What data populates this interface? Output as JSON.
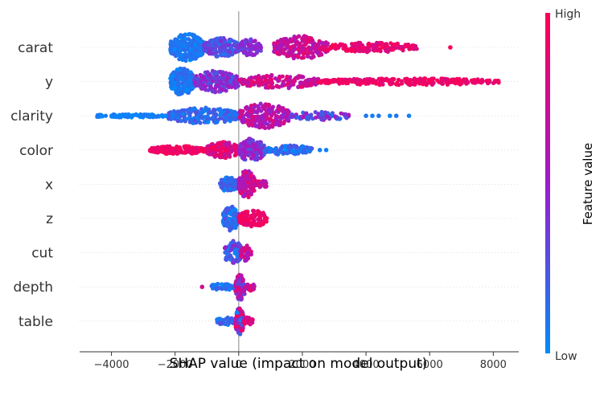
{
  "chart_data": {
    "type": "scatter",
    "subtype": "shap-beeswarm-summary",
    "title": "",
    "xlabel": "SHAP value (impact on model output)",
    "ylabel": "",
    "xlim": [
      -5000,
      8800
    ],
    "xticks": [
      -4000,
      -2000,
      0,
      2000,
      4000,
      6000,
      8000
    ],
    "xtick_labels": [
      "−4000",
      "−2000",
      "0",
      "2000",
      "4000",
      "6000",
      "8000"
    ],
    "grid": false,
    "features": [
      {
        "name": "carat",
        "clusters": [
          {
            "from": -2150,
            "to": -1100,
            "lo": 0.0,
            "hi": 0.18,
            "amp": 1.0,
            "n": 260
          },
          {
            "from": -1100,
            "to": 0,
            "lo": 0.1,
            "hi": 0.45,
            "amp": 0.7,
            "n": 180
          },
          {
            "from": 0,
            "to": 700,
            "lo": 0.3,
            "hi": 0.55,
            "amp": 0.6,
            "n": 80
          },
          {
            "from": 1100,
            "to": 2800,
            "lo": 0.5,
            "hi": 0.9,
            "amp": 0.85,
            "n": 220
          },
          {
            "from": 2800,
            "to": 5600,
            "lo": 0.75,
            "hi": 1.0,
            "amp": 0.35,
            "n": 150
          }
        ],
        "outliers": [
          {
            "x": 6650,
            "c": 1.0
          }
        ]
      },
      {
        "name": "y",
        "clusters": [
          {
            "from": -2150,
            "to": -1400,
            "lo": 0.0,
            "hi": 0.2,
            "amp": 1.0,
            "n": 220
          },
          {
            "from": -1400,
            "to": 0,
            "lo": 0.2,
            "hi": 0.6,
            "amp": 0.8,
            "n": 200
          },
          {
            "from": 0,
            "to": 2500,
            "lo": 0.55,
            "hi": 0.9,
            "amp": 0.5,
            "n": 180
          },
          {
            "from": 2500,
            "to": 8200,
            "lo": 0.8,
            "hi": 1.0,
            "amp": 0.25,
            "n": 260
          }
        ],
        "outliers": []
      },
      {
        "name": "clarity",
        "clusters": [
          {
            "from": -4450,
            "to": -2200,
            "lo": 0.0,
            "hi": 0.1,
            "amp": 0.12,
            "n": 90
          },
          {
            "from": -2200,
            "to": 0,
            "lo": 0.0,
            "hi": 0.3,
            "amp": 0.6,
            "n": 220
          },
          {
            "from": 0,
            "to": 1600,
            "lo": 0.45,
            "hi": 0.85,
            "amp": 0.9,
            "n": 200
          },
          {
            "from": 1600,
            "to": 3600,
            "lo": 0.1,
            "hi": 0.6,
            "amp": 0.3,
            "n": 80
          }
        ],
        "outliers": [
          {
            "x": 4000,
            "c": 0.1
          },
          {
            "x": 4200,
            "c": 0.05
          },
          {
            "x": 4400,
            "c": 0.1
          },
          {
            "x": 4750,
            "c": 0.05
          },
          {
            "x": 4950,
            "c": 0.1
          },
          {
            "x": 5350,
            "c": 0.05
          }
        ]
      },
      {
        "name": "color",
        "clusters": [
          {
            "from": -2800,
            "to": -1000,
            "lo": 0.85,
            "hi": 1.0,
            "amp": 0.3,
            "n": 150
          },
          {
            "from": -1000,
            "to": 0,
            "lo": 0.6,
            "hi": 1.0,
            "amp": 0.6,
            "n": 150
          },
          {
            "from": 0,
            "to": 800,
            "lo": 0.2,
            "hi": 0.6,
            "amp": 0.85,
            "n": 140
          },
          {
            "from": 800,
            "to": 2300,
            "lo": 0.0,
            "hi": 0.3,
            "amp": 0.35,
            "n": 110
          }
        ],
        "outliers": [
          {
            "x": 2550,
            "c": 0.05
          },
          {
            "x": 2750,
            "c": 0.05
          }
        ]
      },
      {
        "name": "x",
        "clusters": [
          {
            "from": -600,
            "to": 0,
            "lo": 0.0,
            "hi": 0.3,
            "amp": 0.55,
            "n": 90
          },
          {
            "from": 0,
            "to": 500,
            "lo": 0.5,
            "hi": 0.9,
            "amp": 1.0,
            "n": 120
          },
          {
            "from": 500,
            "to": 900,
            "lo": 0.55,
            "hi": 0.9,
            "amp": 0.3,
            "n": 25
          }
        ],
        "outliers": []
      },
      {
        "name": "z",
        "clusters": [
          {
            "from": -500,
            "to": 0,
            "lo": 0.0,
            "hi": 0.3,
            "amp": 0.9,
            "n": 110
          },
          {
            "from": 0,
            "to": 900,
            "lo": 0.8,
            "hi": 1.0,
            "amp": 0.6,
            "n": 130
          }
        ],
        "outliers": []
      },
      {
        "name": "cut",
        "clusters": [
          {
            "from": -450,
            "to": 100,
            "lo": 0.0,
            "hi": 0.5,
            "amp": 0.9,
            "n": 90
          },
          {
            "from": 50,
            "to": 400,
            "lo": 0.5,
            "hi": 1.0,
            "amp": 0.6,
            "n": 40
          }
        ],
        "outliers": []
      },
      {
        "name": "depth",
        "clusters": [
          {
            "from": -900,
            "to": -100,
            "lo": 0.0,
            "hi": 0.2,
            "amp": 0.25,
            "n": 50
          },
          {
            "from": -100,
            "to": 200,
            "lo": 0.3,
            "hi": 0.9,
            "amp": 1.0,
            "n": 80
          },
          {
            "from": 200,
            "to": 500,
            "lo": 0.6,
            "hi": 1.0,
            "amp": 0.3,
            "n": 25
          }
        ],
        "outliers": [
          {
            "x": -1150,
            "c": 0.75
          }
        ]
      },
      {
        "name": "table",
        "clusters": [
          {
            "from": -700,
            "to": -100,
            "lo": 0.0,
            "hi": 0.3,
            "amp": 0.3,
            "n": 40
          },
          {
            "from": -100,
            "to": 150,
            "lo": 0.0,
            "hi": 1.0,
            "amp": 1.0,
            "n": 110
          },
          {
            "from": 150,
            "to": 450,
            "lo": 0.7,
            "hi": 1.0,
            "amp": 0.3,
            "n": 30
          }
        ],
        "outliers": []
      }
    ],
    "colorbar": {
      "label": "Feature value",
      "high_label": "High",
      "low_label": "Low",
      "low_color": "#008bfb",
      "mid_color": "#9d1ccb",
      "high_color": "#ff0052"
    },
    "zero_line_color": "#999999"
  }
}
